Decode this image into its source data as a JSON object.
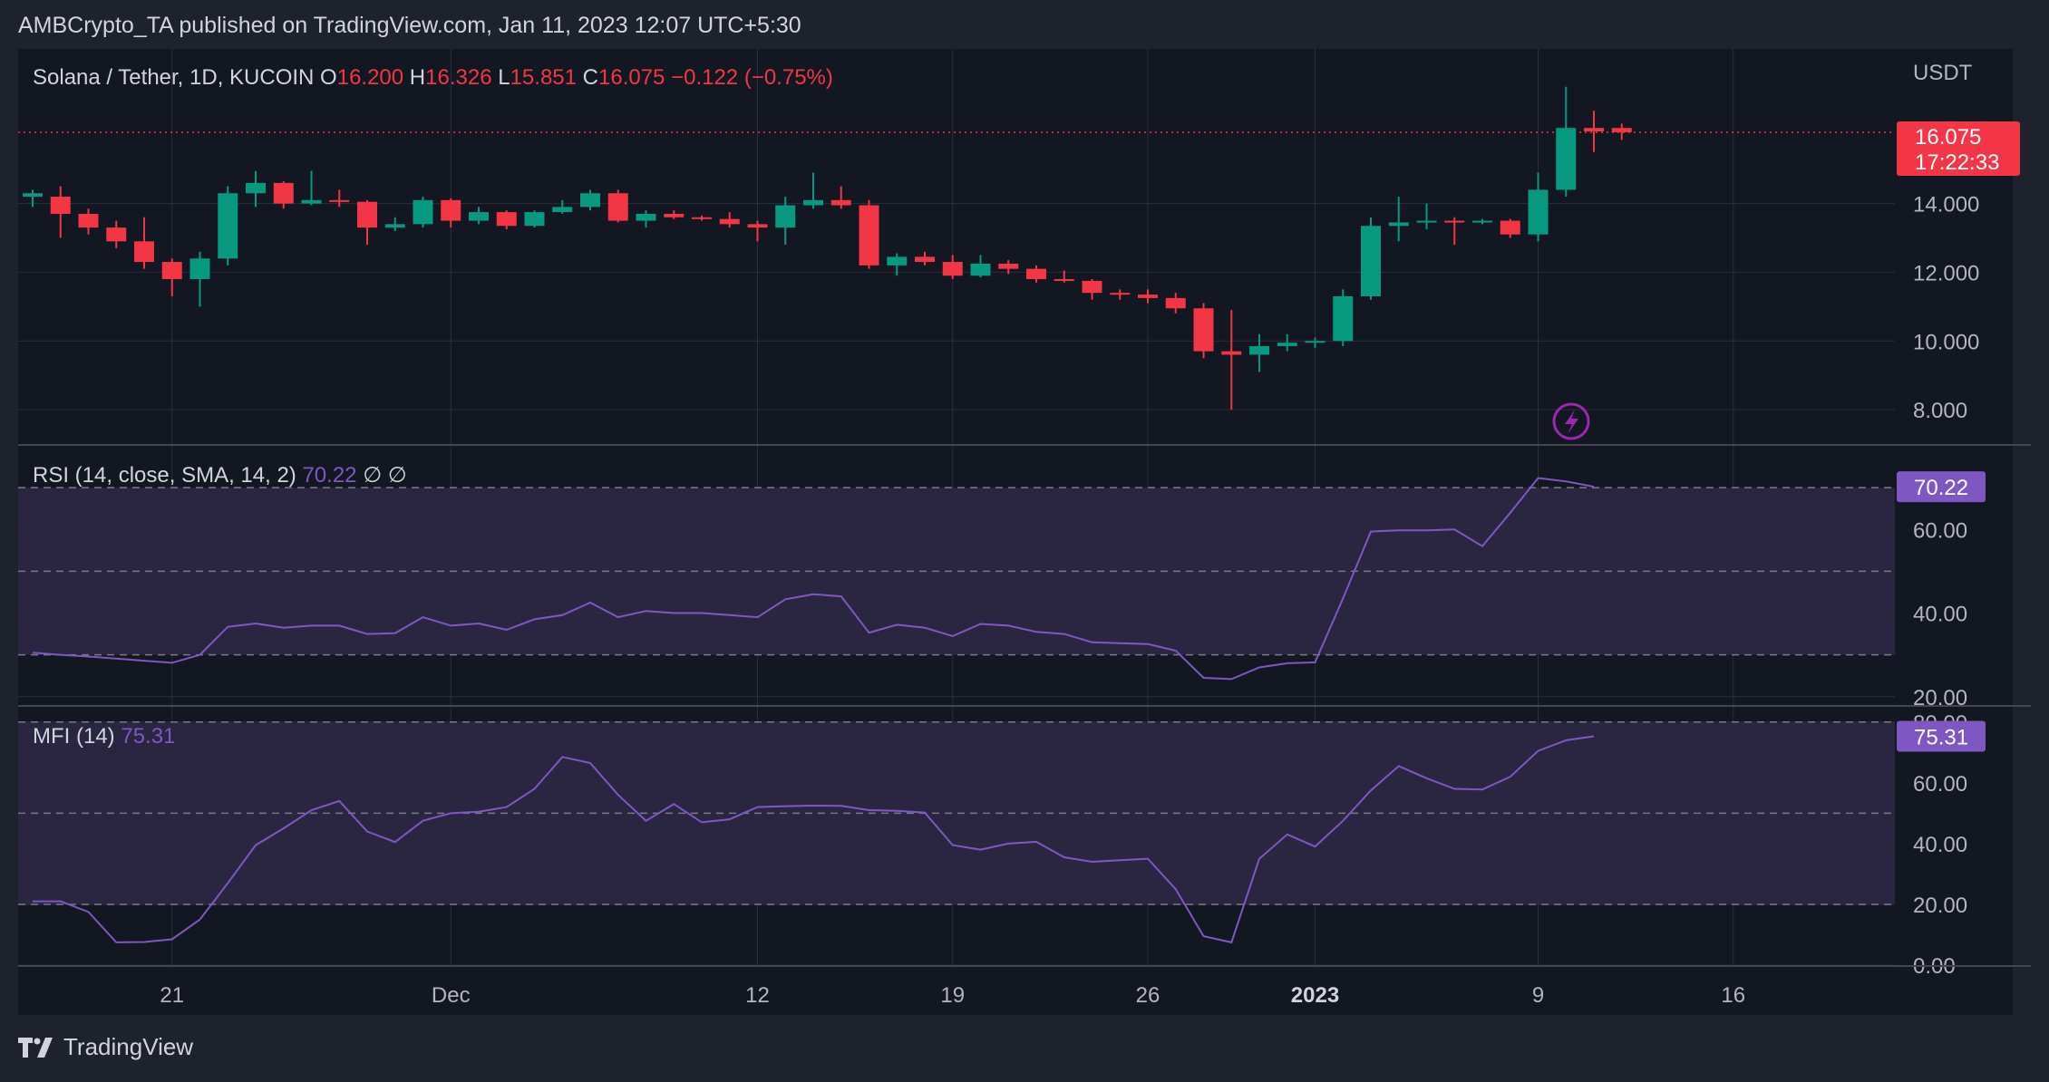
{
  "header": {
    "published_by": "AMBCrypto_TA published on TradingView.com, Jan 11, 2023 12:07 UTC+5:30"
  },
  "footer": {
    "brand": "TradingView"
  },
  "colors": {
    "bg": "#131722",
    "frame": "#1e222d",
    "up": "#089981",
    "down": "#f23645",
    "indicator": "#7e57c2",
    "indicator_band": "#2a2540",
    "text": "#d1d4dc",
    "axis_text": "#b2b5be",
    "grid": "#2a2e39"
  },
  "chart_data": [
    {
      "type": "candlestick",
      "legend": {
        "symbol": "Solana / Tether, 1D, KUCOIN",
        "o_label": "O",
        "o_value": "16.200",
        "h_label": "H",
        "h_value": "16.326",
        "l_label": "L",
        "l_value": "15.851",
        "c_label": "C",
        "c_value": "16.075",
        "change": "−0.122 (−0.75%)"
      },
      "currency": "USDT",
      "last_price": "16.075",
      "countdown": "17:22:33",
      "ylim": [
        7.0,
        18.5
      ],
      "yticks": [
        "14.000",
        "12.000",
        "10.000",
        "8.000"
      ],
      "ytick_values": [
        14,
        12,
        10,
        8
      ],
      "x_axis": {
        "tick_labels": [
          "21",
          "Dec",
          "12",
          "19",
          "26",
          "2023",
          "9",
          "16"
        ],
        "tick_dates": [
          "2022-11-21",
          "2022-12-01",
          "2022-12-12",
          "2022-12-19",
          "2022-12-26",
          "2023-01-01",
          "2023-01-09",
          "2023-01-16"
        ],
        "bold_label": "2023",
        "range": [
          "2022-11-16",
          "2023-01-22"
        ]
      },
      "candles": [
        {
          "date": "2022-11-16",
          "o": 14.2,
          "h": 14.4,
          "l": 13.9,
          "c": 14.3
        },
        {
          "date": "2022-11-17",
          "o": 14.2,
          "h": 14.5,
          "l": 13.0,
          "c": 13.7
        },
        {
          "date": "2022-11-18",
          "o": 13.7,
          "h": 13.85,
          "l": 13.1,
          "c": 13.3
        },
        {
          "date": "2022-11-19",
          "o": 13.3,
          "h": 13.5,
          "l": 12.7,
          "c": 12.9
        },
        {
          "date": "2022-11-20",
          "o": 12.9,
          "h": 13.6,
          "l": 12.1,
          "c": 12.3
        },
        {
          "date": "2022-11-21",
          "o": 12.3,
          "h": 12.4,
          "l": 11.3,
          "c": 11.8
        },
        {
          "date": "2022-11-22",
          "o": 11.8,
          "h": 12.6,
          "l": 11.0,
          "c": 12.4
        },
        {
          "date": "2022-11-23",
          "o": 12.4,
          "h": 14.5,
          "l": 12.2,
          "c": 14.3
        },
        {
          "date": "2022-11-24",
          "o": 14.3,
          "h": 14.95,
          "l": 13.9,
          "c": 14.6
        },
        {
          "date": "2022-11-25",
          "o": 14.6,
          "h": 14.65,
          "l": 13.85,
          "c": 14.0
        },
        {
          "date": "2022-11-26",
          "o": 14.0,
          "h": 14.95,
          "l": 13.95,
          "c": 14.1
        },
        {
          "date": "2022-11-27",
          "o": 14.1,
          "h": 14.4,
          "l": 13.9,
          "c": 14.05
        },
        {
          "date": "2022-11-28",
          "o": 14.05,
          "h": 14.1,
          "l": 12.8,
          "c": 13.3
        },
        {
          "date": "2022-11-29",
          "o": 13.3,
          "h": 13.6,
          "l": 13.2,
          "c": 13.4
        },
        {
          "date": "2022-11-30",
          "o": 13.4,
          "h": 14.2,
          "l": 13.3,
          "c": 14.1
        },
        {
          "date": "2022-12-01",
          "o": 14.1,
          "h": 14.15,
          "l": 13.3,
          "c": 13.5
        },
        {
          "date": "2022-12-02",
          "o": 13.5,
          "h": 13.9,
          "l": 13.4,
          "c": 13.75
        },
        {
          "date": "2022-12-03",
          "o": 13.75,
          "h": 13.8,
          "l": 13.25,
          "c": 13.35
        },
        {
          "date": "2022-12-04",
          "o": 13.35,
          "h": 13.8,
          "l": 13.3,
          "c": 13.75
        },
        {
          "date": "2022-12-05",
          "o": 13.75,
          "h": 14.1,
          "l": 13.7,
          "c": 13.9
        },
        {
          "date": "2022-12-06",
          "o": 13.9,
          "h": 14.4,
          "l": 13.8,
          "c": 14.3
        },
        {
          "date": "2022-12-07",
          "o": 14.3,
          "h": 14.4,
          "l": 13.45,
          "c": 13.5
        },
        {
          "date": "2022-12-08",
          "o": 13.5,
          "h": 13.8,
          "l": 13.3,
          "c": 13.7
        },
        {
          "date": "2022-12-09",
          "o": 13.7,
          "h": 13.8,
          "l": 13.55,
          "c": 13.6
        },
        {
          "date": "2022-12-10",
          "o": 13.6,
          "h": 13.65,
          "l": 13.5,
          "c": 13.55
        },
        {
          "date": "2022-12-11",
          "o": 13.55,
          "h": 13.75,
          "l": 13.3,
          "c": 13.4
        },
        {
          "date": "2022-12-12",
          "o": 13.4,
          "h": 13.5,
          "l": 12.9,
          "c": 13.3
        },
        {
          "date": "2022-12-13",
          "o": 13.3,
          "h": 14.2,
          "l": 12.8,
          "c": 13.95
        },
        {
          "date": "2022-12-14",
          "o": 13.95,
          "h": 14.9,
          "l": 13.85,
          "c": 14.1
        },
        {
          "date": "2022-12-15",
          "o": 14.1,
          "h": 14.5,
          "l": 13.85,
          "c": 13.95
        },
        {
          "date": "2022-12-16",
          "o": 13.95,
          "h": 14.1,
          "l": 12.1,
          "c": 12.2
        },
        {
          "date": "2022-12-17",
          "o": 12.2,
          "h": 12.55,
          "l": 11.9,
          "c": 12.45
        },
        {
          "date": "2022-12-18",
          "o": 12.45,
          "h": 12.6,
          "l": 12.2,
          "c": 12.3
        },
        {
          "date": "2022-12-19",
          "o": 12.3,
          "h": 12.5,
          "l": 11.8,
          "c": 11.9
        },
        {
          "date": "2022-12-20",
          "o": 11.9,
          "h": 12.5,
          "l": 11.85,
          "c": 12.25
        },
        {
          "date": "2022-12-21",
          "o": 12.25,
          "h": 12.35,
          "l": 11.95,
          "c": 12.1
        },
        {
          "date": "2022-12-22",
          "o": 12.1,
          "h": 12.2,
          "l": 11.7,
          "c": 11.8
        },
        {
          "date": "2022-12-23",
          "o": 11.8,
          "h": 12.05,
          "l": 11.7,
          "c": 11.75
        },
        {
          "date": "2022-12-24",
          "o": 11.75,
          "h": 11.8,
          "l": 11.2,
          "c": 11.4
        },
        {
          "date": "2022-12-25",
          "o": 11.4,
          "h": 11.5,
          "l": 11.2,
          "c": 11.35
        },
        {
          "date": "2022-12-26",
          "o": 11.35,
          "h": 11.5,
          "l": 11.1,
          "c": 11.25
        },
        {
          "date": "2022-12-27",
          "o": 11.25,
          "h": 11.4,
          "l": 10.8,
          "c": 10.95
        },
        {
          "date": "2022-12-28",
          "o": 10.95,
          "h": 11.1,
          "l": 9.5,
          "c": 9.7
        },
        {
          "date": "2022-12-29",
          "o": 9.7,
          "h": 10.9,
          "l": 8.0,
          "c": 9.6
        },
        {
          "date": "2022-12-30",
          "o": 9.6,
          "h": 10.2,
          "l": 9.1,
          "c": 9.85
        },
        {
          "date": "2022-12-31",
          "o": 9.85,
          "h": 10.2,
          "l": 9.7,
          "c": 9.95
        },
        {
          "date": "2023-01-01",
          "o": 9.95,
          "h": 10.1,
          "l": 9.8,
          "c": 10.0
        },
        {
          "date": "2023-01-02",
          "o": 10.0,
          "h": 11.5,
          "l": 9.85,
          "c": 11.3
        },
        {
          "date": "2023-01-03",
          "o": 11.3,
          "h": 13.6,
          "l": 11.2,
          "c": 13.35
        },
        {
          "date": "2023-01-04",
          "o": 13.35,
          "h": 14.2,
          "l": 12.9,
          "c": 13.45
        },
        {
          "date": "2023-01-05",
          "o": 13.45,
          "h": 14.0,
          "l": 13.25,
          "c": 13.5
        },
        {
          "date": "2023-01-06",
          "o": 13.5,
          "h": 13.6,
          "l": 12.8,
          "c": 13.45
        },
        {
          "date": "2023-01-07",
          "o": 13.45,
          "h": 13.55,
          "l": 13.4,
          "c": 13.5
        },
        {
          "date": "2023-01-08",
          "o": 13.5,
          "h": 13.55,
          "l": 13.0,
          "c": 13.1
        },
        {
          "date": "2023-01-09",
          "o": 13.1,
          "h": 14.9,
          "l": 12.9,
          "c": 14.4
        },
        {
          "date": "2023-01-10",
          "o": 14.4,
          "h": 17.4,
          "l": 14.2,
          "c": 16.2
        },
        {
          "date": "2023-01-11",
          "o": 16.2,
          "h": 16.7,
          "l": 15.5,
          "c": 16.1
        },
        {
          "date": "2023-01-12",
          "o": 16.2,
          "h": 16.326,
          "l": 15.851,
          "c": 16.075
        }
      ]
    },
    {
      "type": "line",
      "title": "RSI (14, close, SMA, 14, 2)",
      "value_label": "70.22",
      "na_marks": [
        "∅",
        "∅"
      ],
      "ylim": [
        18,
        80
      ],
      "yticks": [
        "60.00",
        "40.00",
        "20.00"
      ],
      "ytick_values": [
        60,
        40,
        20
      ],
      "band": [
        30,
        70
      ],
      "dashed_levels": [
        70,
        50,
        30
      ],
      "series": [
        {
          "values": [
            30.5,
            30.0,
            29.6,
            29.1,
            28.6,
            28.1,
            30.0,
            36.7,
            37.5,
            36.5,
            37.0,
            37.0,
            35.0,
            35.2,
            39.0,
            37.0,
            37.5,
            36.0,
            38.5,
            39.5,
            42.5,
            39.0,
            40.5,
            40.0,
            40.0,
            39.5,
            39.0,
            43.3,
            44.5,
            44.0,
            35.3,
            37.2,
            36.5,
            34.5,
            37.4,
            37.0,
            35.5,
            35.0,
            33.0,
            32.8,
            32.6,
            31.0,
            24.5,
            24.2,
            27.0,
            28.0,
            28.2,
            43.5,
            59.5,
            59.8,
            59.8,
            60.0,
            56.0,
            64.0,
            72.3,
            71.5,
            70.22
          ]
        }
      ]
    },
    {
      "type": "line",
      "title": "MFI (14)",
      "value_label": "75.31",
      "ylim": [
        0,
        85
      ],
      "yticks": [
        "80.00",
        "60.00",
        "40.00",
        "20.00",
        "0.00"
      ],
      "ytick_values": [
        80,
        60,
        40,
        20,
        0
      ],
      "band": [
        20,
        80
      ],
      "dashed_levels": [
        80,
        50,
        20
      ],
      "series": [
        {
          "values": [
            21.0,
            21.0,
            17.5,
            7.5,
            7.6,
            8.5,
            15.0,
            27.0,
            39.5,
            45.0,
            51.0,
            54.0,
            44.0,
            40.5,
            47.5,
            50.0,
            50.5,
            52.0,
            58.0,
            68.5,
            66.5,
            56.0,
            47.5,
            53.0,
            47.0,
            48.0,
            52.0,
            52.3,
            52.5,
            52.4,
            51.0,
            50.8,
            50.2,
            39.5,
            38.0,
            40.0,
            40.6,
            35.5,
            34.0,
            34.5,
            35.0,
            25.0,
            9.5,
            7.5,
            35.0,
            43.0,
            39.0,
            47.5,
            57.5,
            65.5,
            61.5,
            58.0,
            57.8,
            62.0,
            70.5,
            74.0,
            75.31
          ]
        }
      ]
    }
  ]
}
